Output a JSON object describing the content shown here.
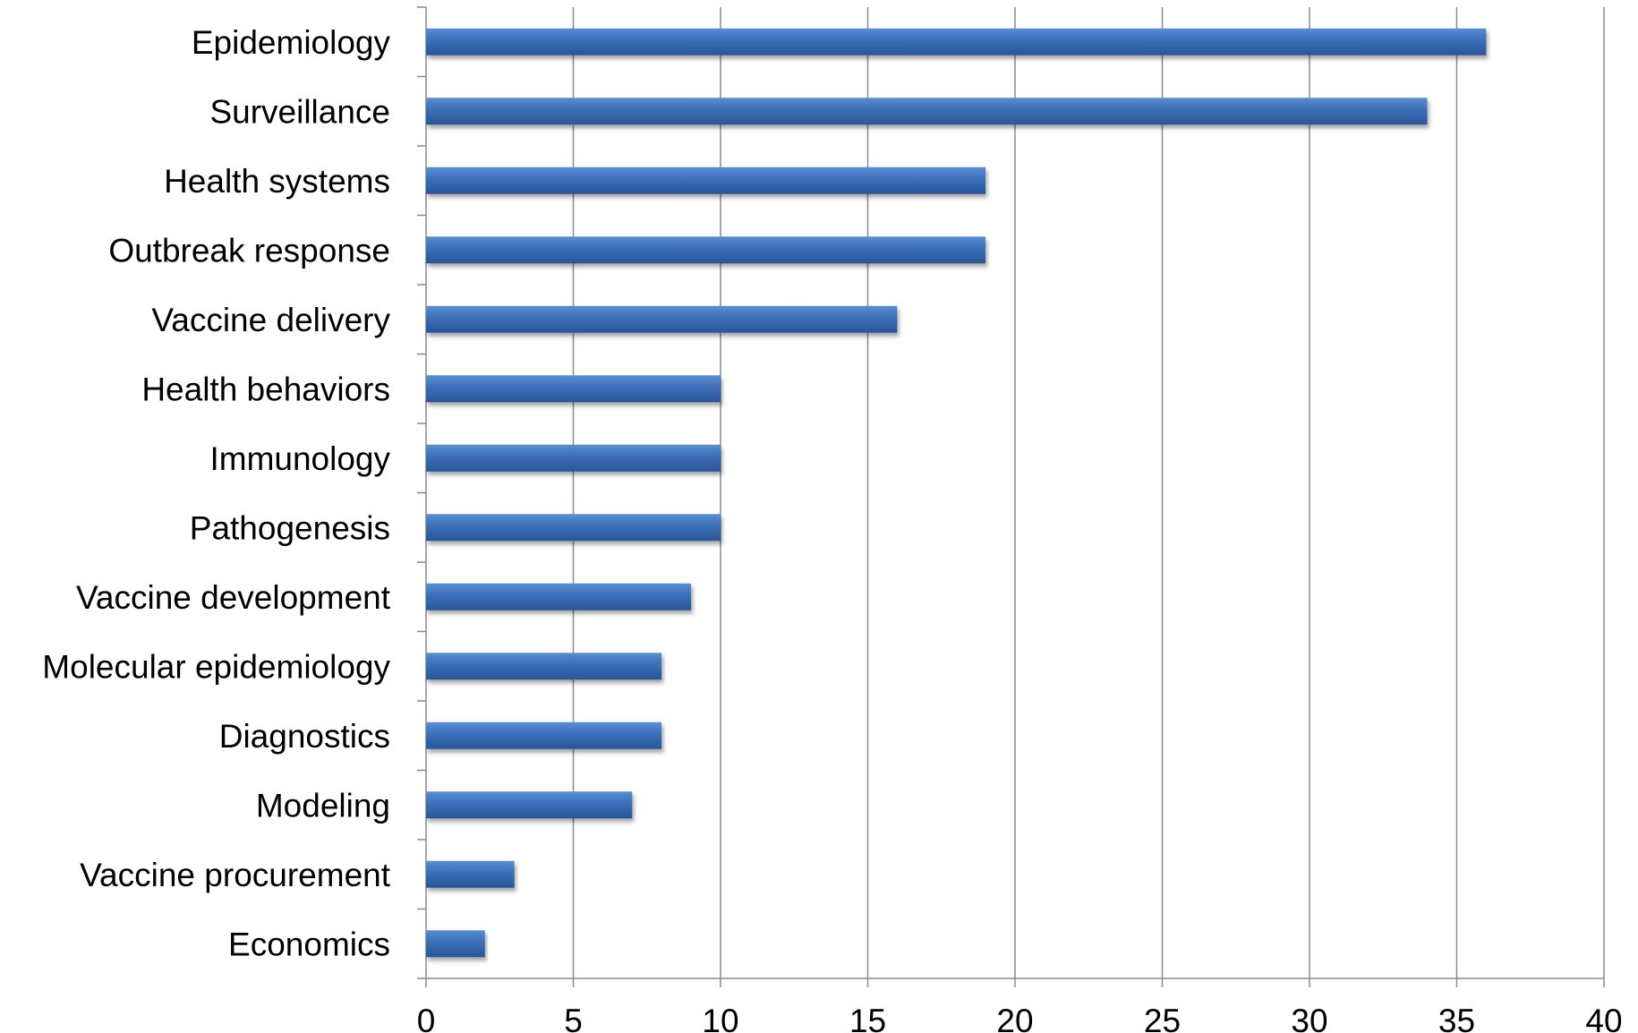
{
  "chart_data": {
    "type": "bar",
    "orientation": "horizontal",
    "categories": [
      "Epidemiology",
      "Surveillance",
      "Health systems",
      "Outbreak response",
      "Vaccine delivery",
      "Health behaviors",
      "Immunology",
      "Pathogenesis",
      "Vaccine development",
      "Molecular epidemiology",
      "Diagnostics",
      "Modeling",
      "Vaccine procurement",
      "Economics"
    ],
    "values": [
      36,
      34,
      19,
      19,
      16,
      10,
      10,
      10,
      9,
      8,
      8,
      7,
      3,
      2
    ],
    "xlim": [
      0,
      40
    ],
    "xticks": [
      0,
      5,
      10,
      15,
      20,
      25,
      30,
      35,
      40
    ],
    "grid": "vertical",
    "legend": "none",
    "bar_color": "#3a6fb8",
    "title": "",
    "xlabel": "",
    "ylabel": ""
  }
}
